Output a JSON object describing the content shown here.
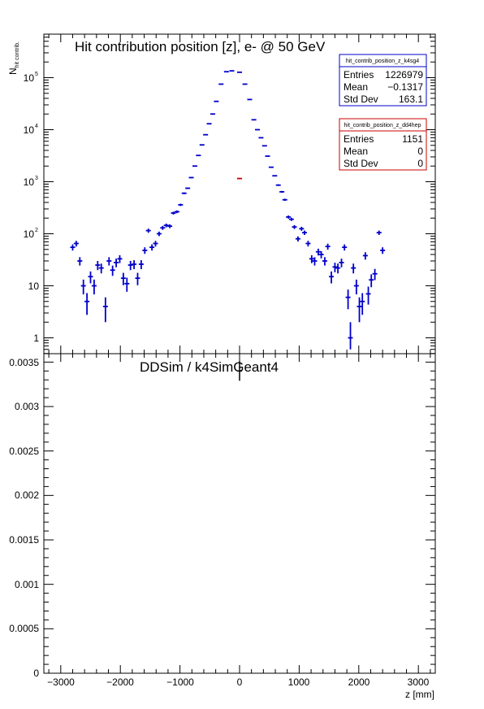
{
  "chart_data": [
    {
      "type": "scatter",
      "title": "Hit contribution position [z],  e- @ 50 GeV",
      "ylabel": "N",
      "ylabel_sub": "hit contrib.",
      "yscale": "log",
      "ylim": [
        0.6,
        700000
      ],
      "xlim": [
        -3300,
        3300
      ],
      "ytick_labels": [
        "1",
        "10",
        "10",
        "10",
        "10",
        "10"
      ],
      "ytick_exponents": [
        "",
        "",
        "2",
        "3",
        "4",
        "5"
      ],
      "series": [
        {
          "color": "#0000cc",
          "points": [
            [
              -2800,
              55
            ],
            [
              -2740,
              65
            ],
            [
              -2680,
              30
            ],
            [
              -2620,
              10
            ],
            [
              -2560,
              5
            ],
            [
              -2500,
              15
            ],
            [
              -2440,
              10
            ],
            [
              -2380,
              25
            ],
            [
              -2320,
              22
            ],
            [
              -2250,
              4
            ],
            [
              -2190,
              30
            ],
            [
              -2130,
              20
            ],
            [
              -2070,
              28
            ],
            [
              -2010,
              33
            ],
            [
              -1950,
              14
            ],
            [
              -1890,
              11
            ],
            [
              -1830,
              25
            ],
            [
              -1770,
              26
            ],
            [
              -1710,
              14
            ],
            [
              -1650,
              26
            ],
            [
              -1590,
              48
            ],
            [
              -1530,
              115
            ],
            [
              -1470,
              55
            ],
            [
              -1410,
              65
            ],
            [
              -1350,
              100
            ],
            [
              -1290,
              130
            ],
            [
              -1230,
              145
            ],
            [
              -1170,
              140
            ],
            [
              -1110,
              250
            ],
            [
              -1050,
              265
            ],
            [
              -990,
              360
            ],
            [
              -930,
              600
            ],
            [
              -870,
              750
            ],
            [
              -810,
              1200
            ],
            [
              -750,
              2000
            ],
            [
              -690,
              3200
            ],
            [
              -630,
              5100
            ],
            [
              -570,
              8000
            ],
            [
              -510,
              13000
            ],
            [
              -450,
              20000
            ],
            [
              -390,
              35000
            ],
            [
              -310,
              75000
            ],
            [
              -220,
              130000
            ],
            [
              -130,
              135000
            ],
            [
              0,
              127000
            ],
            [
              90,
              75000
            ],
            [
              170,
              38000
            ],
            [
              240,
              15500
            ],
            [
              300,
              10000
            ],
            [
              360,
              7000
            ],
            [
              420,
              4900
            ],
            [
              470,
              3100
            ],
            [
              530,
              1900
            ],
            [
              590,
              1300
            ],
            [
              650,
              860
            ],
            [
              710,
              640
            ],
            [
              760,
              450
            ],
            [
              820,
              210
            ],
            [
              870,
              190
            ],
            [
              920,
              135
            ],
            [
              980,
              80
            ],
            [
              1040,
              125
            ],
            [
              1090,
              105
            ],
            [
              1150,
              65
            ],
            [
              1210,
              33
            ],
            [
              1260,
              30
            ],
            [
              1320,
              45
            ],
            [
              1370,
              40
            ],
            [
              1430,
              30
            ],
            [
              1480,
              57
            ],
            [
              1540,
              15
            ],
            [
              1600,
              23
            ],
            [
              1650,
              22
            ],
            [
              1710,
              28
            ],
            [
              1760,
              55
            ],
            [
              1820,
              6
            ],
            [
              1860,
              1
            ],
            [
              1910,
              22
            ],
            [
              1960,
              10
            ],
            [
              2010,
              4
            ],
            [
              2060,
              5
            ],
            [
              2110,
              38
            ],
            [
              2160,
              7
            ],
            [
              2210,
              13
            ],
            [
              2270,
              17
            ],
            [
              2340,
              105
            ],
            [
              2400,
              48
            ]
          ]
        },
        {
          "color": "#cc0000",
          "points": [
            [
              0,
              1151
            ]
          ]
        }
      ],
      "stats_boxes": [
        {
          "name": "hit_contrib_position_z_k4sg4",
          "color": "#0000cc",
          "rows": [
            [
              "Entries",
              "1226979"
            ],
            [
              "Mean",
              "−0.1317"
            ],
            [
              "Std Dev",
              "163.1"
            ]
          ]
        },
        {
          "name": "hit_contrib_position_z_dd4hep",
          "color": "#cc0000",
          "rows": [
            [
              "Entries",
              "1151"
            ],
            [
              "Mean",
              "0"
            ],
            [
              "Std Dev",
              "0"
            ]
          ]
        }
      ]
    },
    {
      "type": "scatter",
      "title": "DDSim / k4SimGeant4",
      "xlabel": "z [mm]",
      "ylim": [
        0,
        0.0036
      ],
      "xlim": [
        -3300,
        3300
      ],
      "ytick_labels": [
        "0",
        "0.0005",
        "0.001",
        "0.0015",
        "0.002",
        "0.0025",
        "0.003",
        "0.0035"
      ],
      "xtick_labels": [
        "−3000",
        "−2000",
        "−1000",
        "0",
        "1000",
        "2000",
        "3000"
      ],
      "series": [
        {
          "color": "#000000",
          "points": [
            [
              0,
              0.0034
            ]
          ]
        }
      ]
    }
  ]
}
